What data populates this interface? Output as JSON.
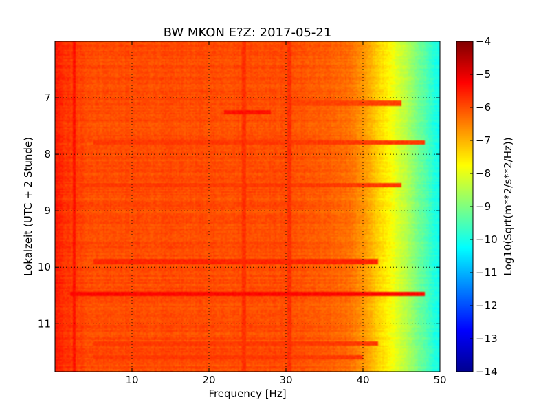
{
  "chart_data": {
    "type": "heatmap",
    "title": "BW MKON E?Z: 2017-05-21",
    "xlabel": "Frequency [Hz]",
    "ylabel": "Lokalzeit (UTC + 2 Stunde)",
    "xlim": [
      0.0,
      50.0
    ],
    "ylim": [
      11.85,
      6.0
    ],
    "y_axis_inverted": true,
    "x_ticks": [
      10,
      20,
      30,
      40,
      50
    ],
    "x_tick_labels": [
      "10",
      "20",
      "30",
      "40",
      "50"
    ],
    "y_ticks": [
      7,
      8,
      9,
      10,
      11
    ],
    "y_tick_labels": [
      "7",
      "8",
      "9",
      "10",
      "11"
    ],
    "grid": true,
    "grid_style": "dotted",
    "colormap": "jet",
    "colorbar": {
      "label": "Log10(Sqrt(m**2/s**2/Hz))",
      "range": [
        -14,
        -4
      ],
      "ticks": [
        -4,
        -5,
        -6,
        -7,
        -8,
        -9,
        -10,
        -11,
        -12,
        -13,
        -14
      ],
      "tick_labels": [
        "−4",
        "−5",
        "−6",
        "−7",
        "−8",
        "−9",
        "−10",
        "−11",
        "−12",
        "−13",
        "−14"
      ]
    },
    "frequency_profile": {
      "frequency_hz": [
        0,
        1,
        2,
        3,
        5,
        10,
        20,
        30,
        38,
        40,
        42,
        44,
        46,
        48,
        50
      ],
      "median_level": [
        -5.5,
        -5.7,
        -5.8,
        -5.9,
        -6.0,
        -6.0,
        -6.0,
        -6.0,
        -6.3,
        -6.7,
        -7.3,
        -7.9,
        -8.6,
        -9.4,
        -10.2
      ]
    },
    "bands": [
      {
        "time": 7.1,
        "freq_range": [
          30,
          45
        ],
        "level": -5.9
      },
      {
        "time": 7.25,
        "freq_range": [
          22,
          28
        ],
        "level": -5.4
      },
      {
        "time": 7.8,
        "freq_range": [
          5,
          48
        ],
        "level": -5.8
      },
      {
        "time": 8.55,
        "freq_range": [
          3,
          45
        ],
        "level": -5.8
      },
      {
        "time": 9.9,
        "freq_range": [
          5,
          42
        ],
        "level": -5.6
      },
      {
        "time": 10.48,
        "freq_range": [
          2,
          48
        ],
        "level": -5.3
      },
      {
        "time": 11.35,
        "freq_range": [
          5,
          42
        ],
        "level": -5.8
      },
      {
        "time": 11.6,
        "freq_range": [
          5,
          40
        ],
        "level": -5.8
      }
    ],
    "vertical_lines": [
      {
        "freq": 2.5,
        "level": -5.4
      },
      {
        "freq": 24.5,
        "level": -5.7
      },
      {
        "freq": 30.5,
        "level": -5.7
      }
    ]
  }
}
